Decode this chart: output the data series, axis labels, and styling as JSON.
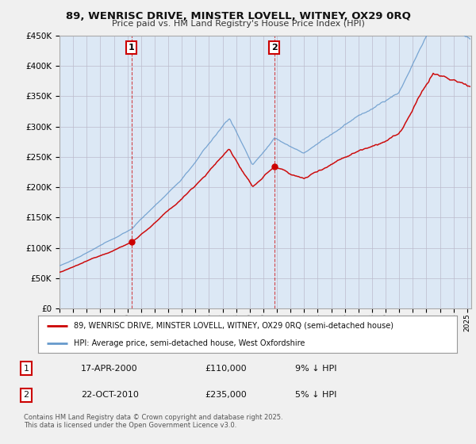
{
  "title_line1": "89, WENRISC DRIVE, MINSTER LOVELL, WITNEY, OX29 0RQ",
  "title_line2": "Price paid vs. HM Land Registry's House Price Index (HPI)",
  "legend_label_red": "89, WENRISC DRIVE, MINSTER LOVELL, WITNEY, OX29 0RQ (semi-detached house)",
  "legend_label_blue": "HPI: Average price, semi-detached house, West Oxfordshire",
  "footnote": "Contains HM Land Registry data © Crown copyright and database right 2025.\nThis data is licensed under the Open Government Licence v3.0.",
  "purchase1_label": "1",
  "purchase1_date": "17-APR-2000",
  "purchase1_price": "£110,000",
  "purchase1_hpi": "9% ↓ HPI",
  "purchase2_label": "2",
  "purchase2_date": "22-OCT-2010",
  "purchase2_price": "£235,000",
  "purchase2_hpi": "5% ↓ HPI",
  "purchase1_year": 2000.3,
  "purchase1_value": 110000,
  "purchase2_year": 2010.8,
  "purchase2_value": 235000,
  "ylim": [
    0,
    450000
  ],
  "yticks": [
    0,
    50000,
    100000,
    150000,
    200000,
    250000,
    300000,
    350000,
    400000,
    450000
  ],
  "background_color": "#f0f0f0",
  "plot_bg_color": "#dce8f5",
  "red_color": "#cc0000",
  "blue_color": "#6699cc",
  "grid_color": "#bbbbcc"
}
